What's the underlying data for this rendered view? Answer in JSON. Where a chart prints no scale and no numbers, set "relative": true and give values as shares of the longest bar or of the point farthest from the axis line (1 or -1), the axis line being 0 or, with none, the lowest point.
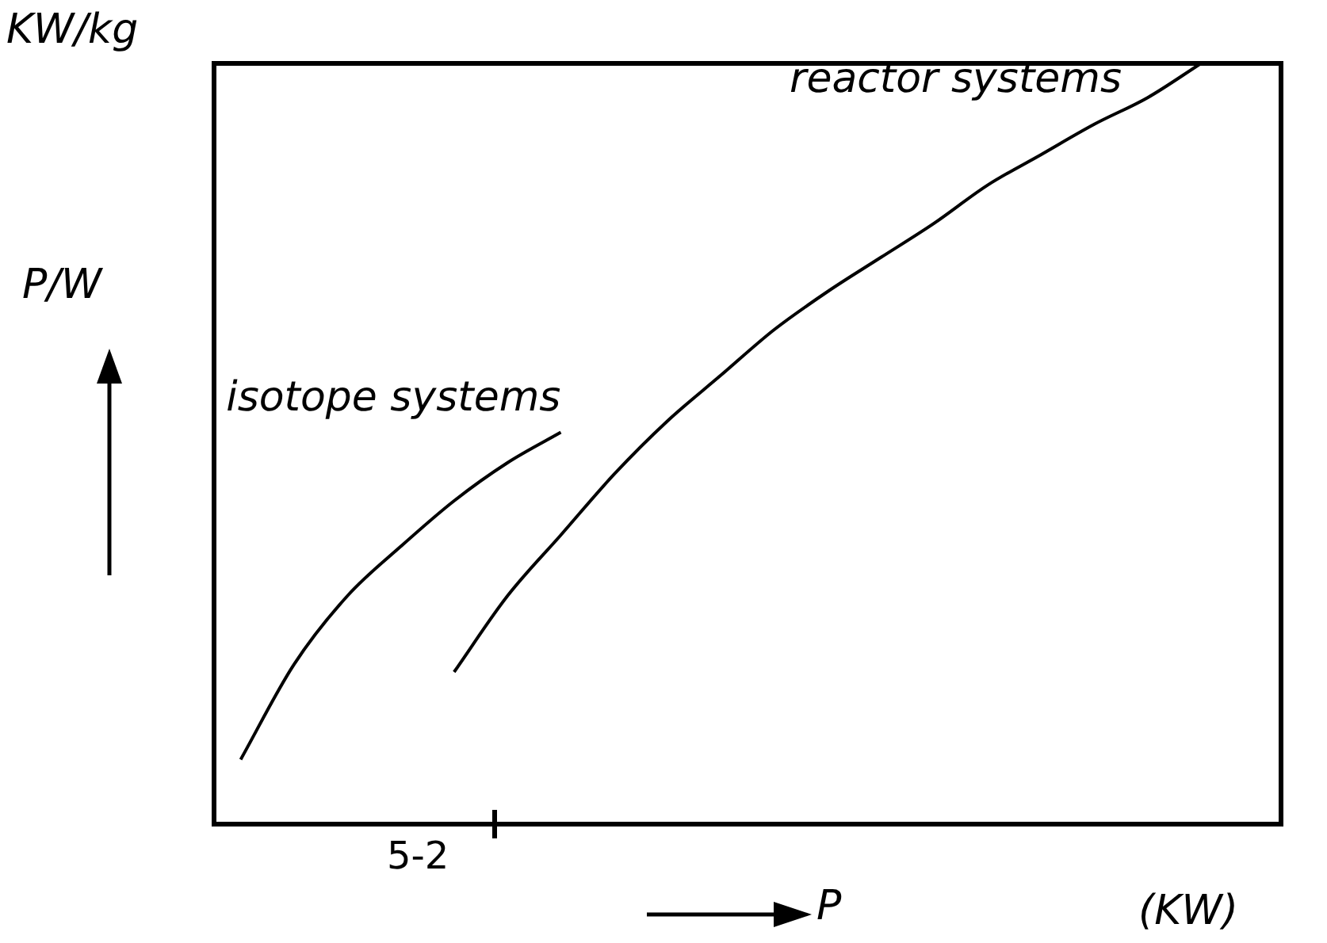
{
  "chart_data": {
    "type": "line",
    "xlabel": "P",
    "ylabel": "P/W",
    "annotations": [
      "KW/kg",
      "(KW)",
      "5-2"
    ],
    "relative": true,
    "legend": false,
    "categories": [
      null,
      null,
      null,
      null,
      null,
      null,
      null,
      null,
      null,
      null,
      null,
      null,
      null,
      null,
      null,
      null,
      null,
      null,
      null,
      null
    ],
    "series": [
      {
        "name": "isotope systems",
        "color": "#000000",
        "values": [
          0.085,
          0.21,
          0.3,
          0.365,
          0.425,
          0.475,
          0.515,
          null,
          null,
          null,
          null,
          null,
          null,
          null,
          null,
          null,
          null,
          null,
          null,
          null
        ]
      },
      {
        "name": "reactor systems",
        "color": "#000000",
        "values": [
          null,
          null,
          null,
          null,
          0.2,
          0.3,
          0.38,
          0.46,
          0.53,
          0.59,
          0.65,
          0.7,
          0.745,
          0.79,
          0.84,
          0.88,
          0.92,
          0.955,
          1,
          null
        ]
      }
    ]
  }
}
